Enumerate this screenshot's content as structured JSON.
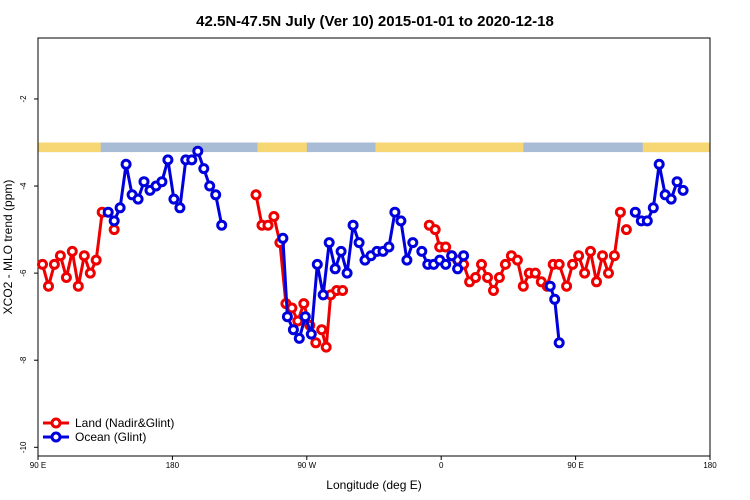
{
  "chart_data": {
    "type": "line",
    "title": "42.5N-47.5N July (Ver 10)   2015-01-01 to 2020-12-18",
    "xlabel": "Longitude (deg E)",
    "ylabel": "XCO2 - MLO trend (ppm)",
    "x_positions": [
      -270,
      -180,
      -90,
      0,
      90,
      180
    ],
    "x_ticks": [
      "90 E",
      "180",
      "90 W",
      "0",
      "90 E",
      "180"
    ],
    "xlim": [
      -270,
      180
    ],
    "y_ticks": [
      -2,
      -4,
      -6,
      -8,
      -10
    ],
    "ylim": [
      -10.2,
      -0.6
    ],
    "grid": false,
    "legend_position": "bottom-left",
    "surface_strip": {
      "y_range": [
        -3.22,
        -3.0
      ],
      "land_color": "#f7d774",
      "ocean_color": "#a9bcd6",
      "land_ranges": [
        [
          -270,
          -228
        ],
        [
          -123,
          -90
        ],
        [
          -44,
          55
        ],
        [
          135,
          180
        ]
      ]
    },
    "series": [
      {
        "name": "Land (Nadir&Glint)",
        "color": "#ee0000",
        "segments": [
          [
            [
              -267,
              -5.8
            ],
            [
              -263,
              -6.3
            ],
            [
              -259,
              -5.8
            ],
            [
              -255,
              -5.6
            ],
            [
              -251,
              -6.1
            ],
            [
              -247,
              -5.5
            ],
            [
              -243,
              -6.3
            ],
            [
              -239,
              -5.6
            ],
            [
              -235,
              -6.0
            ],
            [
              -231,
              -5.7
            ],
            [
              -227,
              -4.6
            ]
          ],
          [
            [
              -219,
              -5.0
            ]
          ],
          [
            [
              -124,
              -4.2
            ],
            [
              -120,
              -4.9
            ],
            [
              -116,
              -4.9
            ],
            [
              -112,
              -4.7
            ],
            [
              -108,
              -5.3
            ],
            [
              -104,
              -6.7
            ],
            [
              -100,
              -6.8
            ],
            [
              -96,
              -7.1
            ],
            [
              -92,
              -6.7
            ],
            [
              -88,
              -7.2
            ],
            [
              -84,
              -7.6
            ]
          ],
          [
            [
              -80,
              -7.3
            ],
            [
              -77,
              -7.7
            ],
            [
              -74,
              -6.5
            ],
            [
              -70,
              -6.4
            ],
            [
              -66,
              -6.4
            ]
          ],
          [
            [
              -8,
              -4.9
            ],
            [
              -4,
              -5.0
            ],
            [
              -1,
              -5.4
            ],
            [
              3,
              -5.4
            ],
            [
              7,
              -5.6
            ],
            [
              11,
              -5.7
            ]
          ],
          [
            [
              15,
              -5.8
            ],
            [
              19,
              -6.2
            ],
            [
              23,
              -6.1
            ],
            [
              27,
              -5.8
            ],
            [
              31,
              -6.1
            ],
            [
              35,
              -6.4
            ],
            [
              39,
              -6.1
            ],
            [
              43,
              -5.8
            ],
            [
              47,
              -5.6
            ],
            [
              51,
              -5.7
            ],
            [
              55,
              -6.3
            ],
            [
              59,
              -6.0
            ],
            [
              63,
              -6.0
            ],
            [
              67,
              -6.2
            ],
            [
              71,
              -6.3
            ],
            [
              75,
              -5.8
            ],
            [
              79,
              -5.8
            ],
            [
              84,
              -6.3
            ],
            [
              88,
              -5.8
            ],
            [
              92,
              -5.6
            ],
            [
              96,
              -6.0
            ],
            [
              100,
              -5.5
            ],
            [
              104,
              -6.2
            ],
            [
              108,
              -5.6
            ],
            [
              112,
              -6.0
            ],
            [
              116,
              -5.6
            ],
            [
              120,
              -4.6
            ]
          ],
          [
            [
              124,
              -5.0
            ]
          ]
        ]
      },
      {
        "name": "Ocean (Glint)",
        "color": "#0000dd",
        "segments": [
          [
            [
              -223,
              -4.6
            ],
            [
              -219,
              -4.8
            ],
            [
              -215,
              -4.5
            ],
            [
              -211,
              -3.5
            ],
            [
              -207,
              -4.2
            ],
            [
              -203,
              -4.3
            ],
            [
              -199,
              -3.9
            ],
            [
              -195,
              -4.1
            ],
            [
              -191,
              -4.0
            ],
            [
              -187,
              -3.9
            ],
            [
              -183,
              -3.4
            ],
            [
              -179,
              -4.3
            ],
            [
              -175,
              -4.5
            ],
            [
              -171,
              -3.4
            ],
            [
              -167,
              -3.4
            ],
            [
              -163,
              -3.2
            ],
            [
              -159,
              -3.6
            ],
            [
              -155,
              -4.0
            ],
            [
              -151,
              -4.2
            ],
            [
              -147,
              -4.9
            ]
          ],
          [
            [
              -106,
              -5.2
            ],
            [
              -103,
              -7.0
            ],
            [
              -99,
              -7.3
            ],
            [
              -95,
              -7.5
            ],
            [
              -91,
              -7.0
            ],
            [
              -87,
              -7.4
            ],
            [
              -83,
              -5.8
            ],
            [
              -79,
              -6.5
            ],
            [
              -75,
              -5.3
            ],
            [
              -71,
              -5.9
            ],
            [
              -67,
              -5.5
            ],
            [
              -63,
              -6.0
            ],
            [
              -59,
              -4.9
            ],
            [
              -55,
              -5.3
            ],
            [
              -51,
              -5.7
            ],
            [
              -47,
              -5.6
            ],
            [
              -43,
              -5.5
            ],
            [
              -39,
              -5.5
            ],
            [
              -35,
              -5.4
            ],
            [
              -31,
              -4.6
            ],
            [
              -27,
              -4.8
            ],
            [
              -23,
              -5.7
            ],
            [
              -19,
              -5.3
            ]
          ],
          [
            [
              -13,
              -5.5
            ],
            [
              -9,
              -5.8
            ],
            [
              -5,
              -5.8
            ],
            [
              -1,
              -5.7
            ],
            [
              3,
              -5.8
            ],
            [
              7,
              -5.6
            ],
            [
              11,
              -5.9
            ],
            [
              15,
              -5.6
            ]
          ],
          [
            [
              73,
              -6.3
            ],
            [
              76,
              -6.6
            ],
            [
              79,
              -7.6
            ]
          ],
          [
            [
              130,
              -4.6
            ],
            [
              134,
              -4.8
            ],
            [
              138,
              -4.8
            ],
            [
              142,
              -4.5
            ],
            [
              146,
              -3.5
            ],
            [
              150,
              -4.2
            ],
            [
              154,
              -4.3
            ],
            [
              158,
              -3.9
            ],
            [
              162,
              -4.1
            ]
          ]
        ]
      }
    ]
  }
}
